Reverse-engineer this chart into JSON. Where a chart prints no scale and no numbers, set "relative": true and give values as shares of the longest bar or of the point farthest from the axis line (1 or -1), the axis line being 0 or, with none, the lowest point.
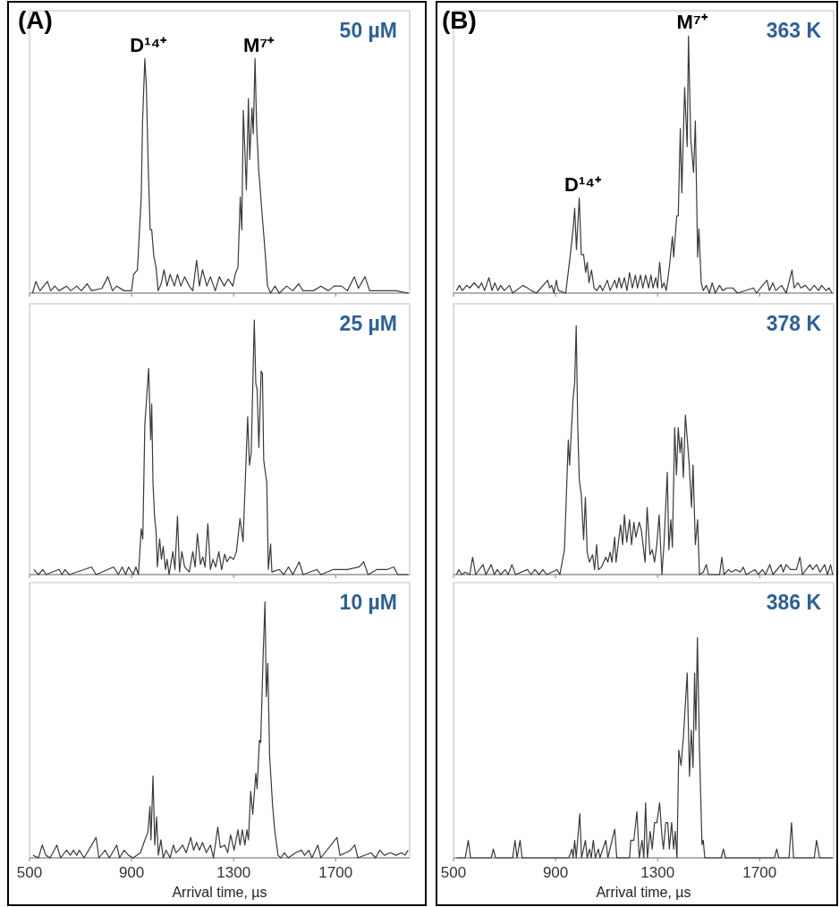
{
  "chart_data": [
    {
      "type": "line",
      "title": "50 µM",
      "annotations": [
        "(A)",
        {
          "text": "D¹⁴⁺",
          "x": 952,
          "y": 1
        },
        {
          "text": "M⁷⁺",
          "x": 1384,
          "y": 1
        }
      ],
      "relative": true,
      "xlim": [
        500,
        1990
      ],
      "xticks": [
        500,
        900,
        1300,
        1700
      ],
      "tick_labels": false,
      "x": [
        512,
        525,
        541,
        570,
        583,
        599,
        616,
        645,
        662,
        685,
        703,
        726,
        743,
        784,
        807,
        825,
        842,
        871,
        900,
        908,
        923,
        938,
        943,
        952,
        958,
        966,
        973,
        979,
        987,
        996,
        1004,
        1016,
        1027,
        1039,
        1051,
        1068,
        1080,
        1093,
        1108,
        1126,
        1140,
        1155,
        1166,
        1178,
        1195,
        1209,
        1228,
        1244,
        1263,
        1279,
        1297,
        1306,
        1317,
        1326,
        1332,
        1338,
        1350,
        1358,
        1363,
        1372,
        1377,
        1384,
        1390,
        1398,
        1410,
        1421,
        1433,
        1445,
        1462,
        1479,
        1508,
        1532,
        1555,
        1572,
        1613,
        1642,
        1671,
        1694,
        1723,
        1746,
        1773,
        1789,
        1815,
        1833,
        1868,
        1902,
        1937,
        1984
      ],
      "series": [
        {
          "color": "#3a3a3a",
          "values": [
            0,
            0.05,
            0.01,
            0.05,
            0.01,
            0.03,
            0.01,
            0.03,
            0.01,
            0.03,
            0.01,
            0.04,
            0.01,
            0.02,
            0.07,
            0.01,
            0.03,
            0.01,
            0.01,
            0.08,
            0.1,
            0.41,
            0.73,
            1,
            0.88,
            0.51,
            0.27,
            0.27,
            0.16,
            0.11,
            0.01,
            0.04,
            0.1,
            0.03,
            0.08,
            0.03,
            0.08,
            0.03,
            0.07,
            0.03,
            0.01,
            0.14,
            0.03,
            0.1,
            0.03,
            0.07,
            0.01,
            0.07,
            0.03,
            0.06,
            0.03,
            0.08,
            0.11,
            0.41,
            0.27,
            0.78,
            0.44,
            0.83,
            0.57,
            0.79,
            0.68,
            1,
            0.72,
            0.53,
            0.36,
            0.21,
            0.03,
            0,
            0.03,
            0,
            0.03,
            0.01,
            0.04,
            0.01,
            0.01,
            0.03,
            0.01,
            0.03,
            0.03,
            0.01,
            0.07,
            0.02,
            0.07,
            0.01,
            0.01,
            0.01,
            0.01,
            0
          ]
        }
      ]
    },
    {
      "type": "line",
      "title": "25 µM",
      "relative": true,
      "xlim": [
        500,
        1990
      ],
      "xticks": [
        500,
        900,
        1300,
        1700
      ],
      "tick_labels": false,
      "x": [
        517,
        535,
        552,
        564,
        616,
        627,
        639,
        656,
        743,
        761,
        830,
        848,
        863,
        877,
        888,
        906,
        917,
        927,
        938,
        944,
        952,
        967,
        975,
        979,
        984,
        990,
        996,
        1001,
        1010,
        1017,
        1024,
        1033,
        1039,
        1047,
        1062,
        1070,
        1080,
        1088,
        1097,
        1108,
        1126,
        1140,
        1149,
        1158,
        1170,
        1179,
        1188,
        1199,
        1209,
        1219,
        1230,
        1242,
        1253,
        1265,
        1274,
        1286,
        1300,
        1311,
        1325,
        1337,
        1355,
        1362,
        1369,
        1381,
        1387,
        1392,
        1399,
        1408,
        1413,
        1418,
        1430,
        1436,
        1445,
        1450,
        1479,
        1497,
        1515,
        1532,
        1557,
        1572,
        1627,
        1642,
        1691,
        1717,
        1746,
        1792,
        1810,
        1827,
        1862,
        1902,
        1928,
        1943,
        1984
      ],
      "series": [
        {
          "color": "#3a3a3a",
          "values": [
            0.02,
            0,
            0.02,
            0,
            0.02,
            0,
            0.02,
            0,
            0.03,
            0,
            0.03,
            0,
            0.03,
            0,
            0.03,
            0,
            0.03,
            0,
            0.18,
            0.14,
            0.59,
            0.81,
            0.53,
            0.67,
            0.36,
            0.23,
            0.17,
            0.03,
            0.14,
            0.06,
            0.11,
            0.02,
            0.06,
            0,
            0.09,
            0.02,
            0.23,
            0.01,
            0.09,
            0.03,
            0.01,
            0.09,
            0.03,
            0.16,
            0.04,
            0.07,
            0.03,
            0.2,
            0.02,
            0.06,
            0.03,
            0.09,
            0.02,
            0.08,
            0.05,
            0.07,
            0.06,
            0.09,
            0.22,
            0.13,
            0.62,
            0.43,
            0.48,
            1,
            0.75,
            0.73,
            0.5,
            0.8,
            0.79,
            0.45,
            0.36,
            0.02,
            0.12,
            0.01,
            0.02,
            0,
            0.03,
            0,
            0.05,
            0,
            0.02,
            0,
            0.02,
            0.02,
            0.02,
            0.03,
            0.05,
            0,
            0.02,
            0.02,
            0.03,
            0,
            0
          ]
        }
      ]
    },
    {
      "type": "line",
      "title": "10 µM",
      "xlabel": "Arrival time, µs",
      "relative": true,
      "xlim": [
        500,
        1990
      ],
      "xticks": [
        500,
        900,
        1300,
        1700
      ],
      "tick_labels": "x",
      "x": [
        514,
        535,
        550,
        564,
        581,
        607,
        622,
        645,
        660,
        672,
        685,
        695,
        714,
        761,
        772,
        796,
        813,
        842,
        853,
        871,
        888,
        906,
        935,
        952,
        964,
        972,
        976,
        984,
        991,
        998,
        1005,
        1015,
        1024,
        1035,
        1051,
        1064,
        1074,
        1085,
        1100,
        1114,
        1132,
        1143,
        1155,
        1166,
        1178,
        1193,
        1209,
        1221,
        1238,
        1248,
        1265,
        1277,
        1288,
        1302,
        1317,
        1325,
        1334,
        1344,
        1352,
        1358,
        1367,
        1375,
        1387,
        1392,
        1401,
        1406,
        1416,
        1423,
        1428,
        1434,
        1441,
        1447,
        1453,
        1462,
        1474,
        1485,
        1499,
        1514,
        1543,
        1566,
        1578,
        1595,
        1607,
        1630,
        1642,
        1705,
        1717,
        1740,
        1758,
        1775,
        1787,
        1839,
        1856,
        1873,
        1891,
        1914,
        1937,
        1958,
        1972,
        1984
      ],
      "series": [
        {
          "color": "#3a3a3a",
          "values": [
            0.01,
            0,
            0.05,
            0.01,
            0,
            0.05,
            0,
            0.03,
            0.01,
            0.03,
            0.01,
            0.03,
            0,
            0.08,
            0,
            0.03,
            0,
            0.05,
            0,
            0.03,
            0.01,
            0,
            0.02,
            0.07,
            0.1,
            0.2,
            0.07,
            0.32,
            0.05,
            0.16,
            0.01,
            0.07,
            0,
            0.03,
            0,
            0.05,
            0.02,
            0.03,
            0.05,
            0.02,
            0.08,
            0.03,
            0.06,
            0.03,
            0.06,
            0.02,
            0.05,
            0,
            0.12,
            0.04,
            0.05,
            0.02,
            0.09,
            0.03,
            0.11,
            0.05,
            0.11,
            0.05,
            0.11,
            0.07,
            0.26,
            0.17,
            0.33,
            0.27,
            0.46,
            0.45,
            0.8,
            1,
            0.63,
            0.76,
            0.4,
            0.3,
            0.2,
            0.1,
            0.01,
            0,
            0.02,
            0,
            0.02,
            0.03,
            0.01,
            0.03,
            0,
            0.05,
            0,
            0.08,
            0.01,
            0.02,
            0.03,
            0.05,
            0,
            0.02,
            0,
            0.03,
            0.01,
            0.02,
            0.01,
            0.02,
            0.01,
            0.03
          ]
        }
      ]
    },
    {
      "type": "line",
      "title": "363 K",
      "annotations": [
        "(B)",
        {
          "text": "D¹⁴⁺",
          "x": 993,
          "y": 0.37
        },
        {
          "text": "M⁷⁺",
          "x": 1421,
          "y": 1
        }
      ],
      "relative": true,
      "xlim": [
        500,
        1990
      ],
      "xticks": [
        500,
        900,
        1300,
        1700
      ],
      "tick_labels": false,
      "x": [
        512,
        523,
        535,
        552,
        564,
        581,
        599,
        610,
        622,
        639,
        651,
        662,
        674,
        685,
        699,
        720,
        732,
        772,
        790,
        804,
        825,
        869,
        877,
        885,
        894,
        903,
        911,
        940,
        958,
        969,
        975,
        982,
        993,
        1001,
        1010,
        1018,
        1024,
        1031,
        1041,
        1051,
        1062,
        1074,
        1085,
        1103,
        1114,
        1132,
        1140,
        1149,
        1158,
        1170,
        1180,
        1190,
        1201,
        1213,
        1221,
        1233,
        1242,
        1253,
        1265,
        1274,
        1282,
        1293,
        1300,
        1308,
        1317,
        1325,
        1334,
        1346,
        1358,
        1363,
        1375,
        1381,
        1389,
        1395,
        1406,
        1416,
        1421,
        1430,
        1441,
        1448,
        1457,
        1462,
        1471,
        1479,
        1491,
        1503,
        1514,
        1526,
        1543,
        1555,
        1572,
        1595,
        1613,
        1676,
        1688,
        1711,
        1729,
        1738,
        1752,
        1763,
        1786,
        1804,
        1827,
        1835,
        1850,
        1862,
        1879,
        1897,
        1914,
        1931,
        1943,
        1960,
        1972,
        1984
      ],
      "series": [
        {
          "color": "#3a3a3a",
          "values": [
            0.01,
            0.03,
            0.01,
            0.03,
            0.02,
            0.04,
            0.02,
            0.04,
            0.01,
            0.06,
            0.01,
            0.04,
            0.01,
            0.03,
            0.01,
            0.03,
            0,
            0.03,
            0.02,
            0.01,
            0,
            0.05,
            0.02,
            0.03,
            0,
            0.05,
            0.01,
            0,
            0.15,
            0.25,
            0.33,
            0.17,
            0.37,
            0.15,
            0.15,
            0.08,
            0.12,
            0.04,
            0.09,
            0.02,
            0.01,
            0.03,
            0.01,
            0.05,
            0.01,
            0.05,
            0.02,
            0.06,
            0.02,
            0.06,
            0.01,
            0.08,
            0.02,
            0.07,
            0.02,
            0.07,
            0.02,
            0.07,
            0.02,
            0.07,
            0.02,
            0.06,
            0.02,
            0.12,
            0.02,
            0.04,
            0.01,
            0.1,
            0.22,
            0.14,
            0.3,
            0.3,
            0.64,
            0.39,
            0.8,
            0.57,
            1,
            0.6,
            0.47,
            0.67,
            0.14,
            0.25,
            0.04,
            0.01,
            0.03,
            0,
            0.04,
            0,
            0.03,
            0.01,
            0.02,
            0.02,
            0,
            0.02,
            0,
            0.03,
            0.05,
            0.01,
            0.04,
            0.01,
            0.03,
            0,
            0.09,
            0.02,
            0.04,
            0.02,
            0.03,
            0.01,
            0.03,
            0.01,
            0.03,
            0.01,
            0.02,
            0
          ]
        }
      ]
    },
    {
      "type": "line",
      "title": "378 K",
      "relative": true,
      "xlim": [
        500,
        1990
      ],
      "xticks": [
        500,
        900,
        1300,
        1700
      ],
      "tick_labels": false,
      "x": [
        512,
        521,
        532,
        546,
        564,
        575,
        587,
        616,
        627,
        648,
        660,
        672,
        685,
        703,
        714,
        729,
        743,
        790,
        804,
        819,
        836,
        850,
        865,
        906,
        917,
        935,
        950,
        955,
        969,
        975,
        981,
        987,
        993,
        1001,
        1010,
        1017,
        1024,
        1033,
        1045,
        1053,
        1061,
        1068,
        1080,
        1097,
        1105,
        1114,
        1121,
        1132,
        1137,
        1155,
        1163,
        1170,
        1179,
        1190,
        1198,
        1207,
        1215,
        1228,
        1236,
        1251,
        1259,
        1270,
        1279,
        1288,
        1297,
        1306,
        1317,
        1325,
        1338,
        1344,
        1352,
        1358,
        1367,
        1374,
        1381,
        1388,
        1394,
        1401,
        1409,
        1416,
        1424,
        1433,
        1439,
        1448,
        1457,
        1464,
        1479,
        1491,
        1499,
        1543,
        1552,
        1560,
        1578,
        1589,
        1607,
        1624,
        1636,
        1647,
        1682,
        1694,
        1711,
        1723,
        1740,
        1752,
        1784,
        1792,
        1804,
        1821,
        1844,
        1858,
        1868,
        1897,
        1908,
        1923,
        1937,
        1955,
        1966,
        1978,
        1986
      ],
      "series": [
        {
          "color": "#3a3a3a",
          "values": [
            0,
            0.02,
            0,
            0.01,
            0,
            0.07,
            0,
            0.04,
            0,
            0.04,
            0,
            0.02,
            0,
            0.02,
            0,
            0.04,
            0,
            0.02,
            0,
            0.02,
            0,
            0.02,
            0,
            0.02,
            0,
            0.1,
            0.54,
            0.44,
            0.71,
            0.77,
            1,
            0.6,
            0.38,
            0.32,
            0.14,
            0.31,
            0.09,
            0.05,
            0.08,
            0.02,
            0.12,
            0.02,
            0.03,
            0.07,
            0.05,
            0.09,
            0.05,
            0.15,
            0.05,
            0.2,
            0.12,
            0.24,
            0.13,
            0.22,
            0.12,
            0.21,
            0.15,
            0.21,
            0.18,
            0.05,
            0.27,
            0.08,
            0.1,
            0.05,
            0.12,
            0.24,
            0,
            0.12,
            0.41,
            0.1,
            0.22,
            0.11,
            0.59,
            0.4,
            0.59,
            0.49,
            0.55,
            0.39,
            0.64,
            0.55,
            0.44,
            0.27,
            0.44,
            0.12,
            0.22,
            0,
            0.01,
            0.04,
            0,
            0,
            0.07,
            0,
            0.02,
            0.01,
            0.02,
            0.01,
            0.03,
            0,
            0.02,
            0,
            0.02,
            0,
            0.04,
            0,
            0.04,
            0.01,
            0.04,
            0.02,
            0.02,
            0.07,
            0,
            0.04,
            0.02,
            0.04,
            0.01,
            0.04,
            0,
            0.04,
            0
          ]
        }
      ]
    },
    {
      "type": "line",
      "title": "386 K",
      "xlabel": "Arrival time, µs",
      "relative": true,
      "xlim": [
        500,
        1990
      ],
      "xticks": [
        500,
        900,
        1300,
        1700
      ],
      "tick_labels": "x",
      "x": [
        512,
        546,
        558,
        567,
        648,
        656,
        665,
        732,
        741,
        749,
        761,
        769,
        952,
        964,
        969,
        975,
        981,
        995,
        1002,
        1017,
        1024,
        1033,
        1040,
        1048,
        1056,
        1068,
        1074,
        1097,
        1105,
        1132,
        1140,
        1190,
        1195,
        1207,
        1219,
        1228,
        1239,
        1246,
        1253,
        1260,
        1271,
        1279,
        1288,
        1297,
        1308,
        1317,
        1323,
        1332,
        1340,
        1346,
        1355,
        1363,
        1369,
        1376,
        1383,
        1392,
        1402,
        1416,
        1425,
        1432,
        1439,
        1445,
        1450,
        1456,
        1464,
        1474,
        1479,
        1485,
        1549,
        1558,
        1566,
        1758,
        1767,
        1775,
        1815,
        1825,
        1833,
        1914,
        1923,
        1935,
        1984
      ],
      "series": [
        {
          "color": "#3a3a3a",
          "values": [
            0,
            0,
            0.08,
            0,
            0,
            0.04,
            0,
            0,
            0.08,
            0,
            0.08,
            0,
            0,
            0.04,
            0,
            0.08,
            0,
            0.2,
            0,
            0.08,
            0,
            0.04,
            0,
            0.08,
            0,
            0.04,
            0,
            0.08,
            0,
            0.13,
            0,
            0,
            0.08,
            0.08,
            0.21,
            0,
            0.08,
            0,
            0.25,
            0,
            0.12,
            0.04,
            0.16,
            0.16,
            0.25,
            0.1,
            0.04,
            0.16,
            0.16,
            0.04,
            0.16,
            0.04,
            0.12,
            0,
            0.49,
            0.42,
            0.56,
            0.84,
            0.37,
            0.58,
            0.41,
            0.84,
            0.58,
            1,
            0.5,
            0.06,
            0.08,
            0,
            0,
            0.04,
            0,
            0,
            0.04,
            0,
            0,
            0.16,
            0,
            0,
            0.08,
            0,
            0
          ]
        }
      ]
    }
  ]
}
